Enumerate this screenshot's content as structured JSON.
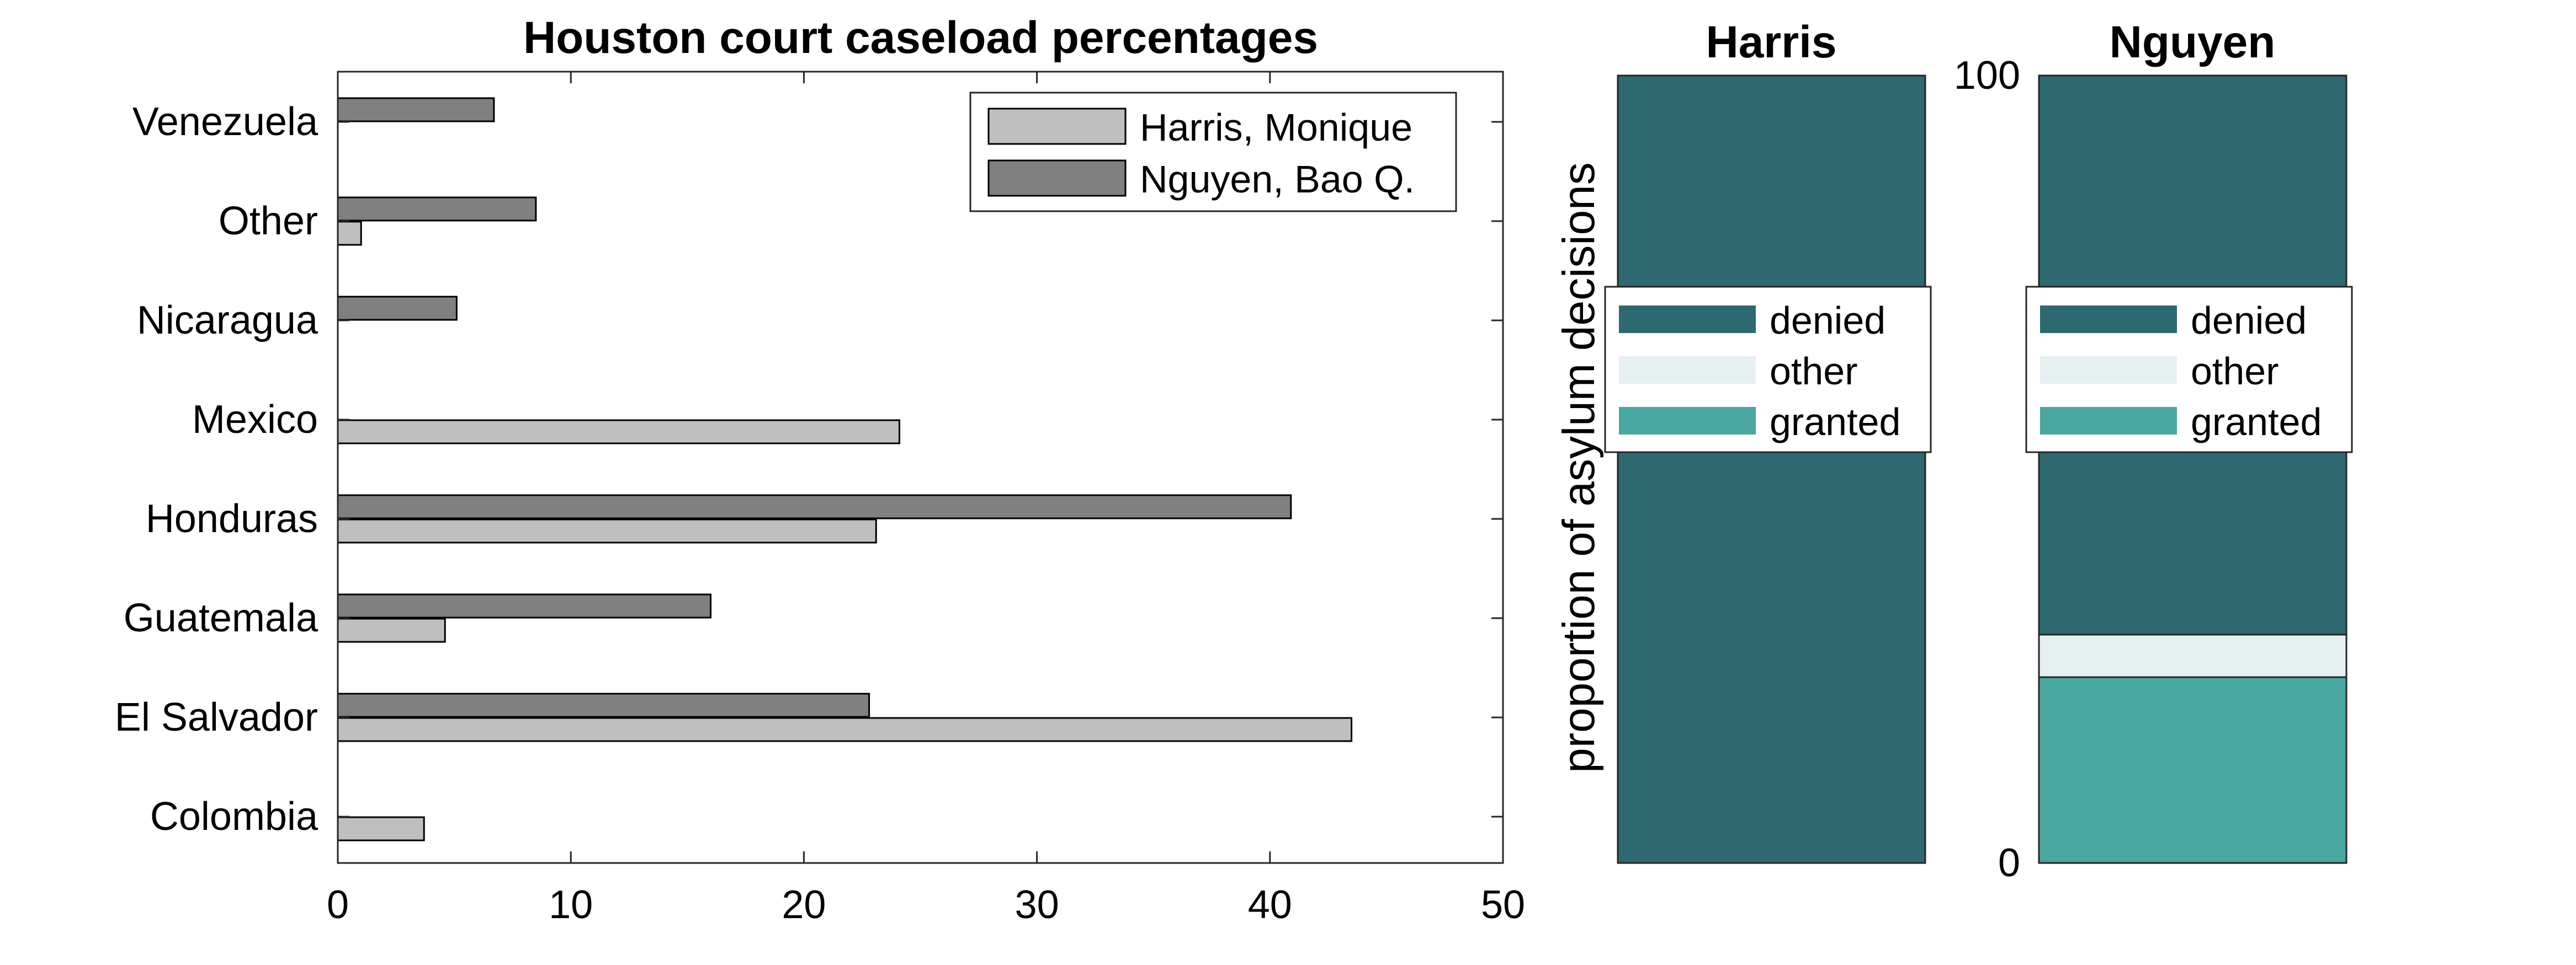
{
  "chart_data": [
    {
      "type": "bar",
      "orientation": "horizontal",
      "title": "Houston court caseload percentages",
      "xlabel": "",
      "ylabel": "",
      "categories": [
        "Venezuela",
        "Other",
        "Nicaragua",
        "Mexico",
        "Honduras",
        "Guatemala",
        "El Salvador",
        "Colombia"
      ],
      "series": [
        {
          "name": "Harris, Monique",
          "color": "#bfbfbf",
          "values": [
            0,
            1.0,
            0,
            24.1,
            23.1,
            4.6,
            43.5,
            3.7
          ]
        },
        {
          "name": "Nguyen, Bao Q.",
          "color": "#808080",
          "values": [
            6.7,
            8.5,
            5.1,
            0,
            40.9,
            16.0,
            22.8,
            0
          ]
        }
      ],
      "xlim": [
        0,
        50
      ],
      "xticks": [
        "0",
        "10",
        "20",
        "30",
        "40",
        "50"
      ],
      "legend_position": "top-right",
      "grid": false
    },
    {
      "type": "bar",
      "stacked": true,
      "title": "Harris",
      "ylabel": "proportion of asylum decisions",
      "ylim": [
        0,
        100
      ],
      "yticks": [],
      "segments": [
        {
          "name": "granted",
          "value": 0,
          "color": "#4aa6a0"
        },
        {
          "name": "other",
          "value": 0,
          "color": "#e6f0f0"
        },
        {
          "name": "denied",
          "value": 100,
          "color": "#2e6870"
        }
      ],
      "legend_position": "center"
    },
    {
      "type": "bar",
      "stacked": true,
      "title": "Nguyen",
      "ylabel": "",
      "ylim": [
        0,
        100
      ],
      "yticks": [
        "0",
        "100"
      ],
      "segments": [
        {
          "name": "granted",
          "value": 23.6,
          "color": "#4aa6a0"
        },
        {
          "name": "other",
          "value": 5.4,
          "color": "#e6f0f0"
        },
        {
          "name": "denied",
          "value": 71.0,
          "color": "#2e6870"
        }
      ],
      "legend_position": "center"
    }
  ]
}
